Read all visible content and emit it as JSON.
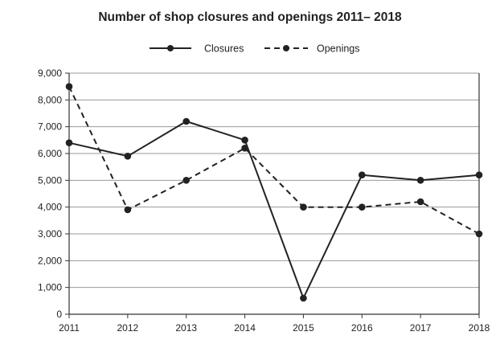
{
  "chart_data": {
    "type": "line",
    "title": "Number of shop closures and openings 2011– 2018",
    "xlabel": "",
    "ylabel": "",
    "categories": [
      "2011",
      "2012",
      "2013",
      "2014",
      "2015",
      "2016",
      "2017",
      "2018"
    ],
    "ylim": [
      0,
      9000
    ],
    "yticks": [
      0,
      1000,
      2000,
      3000,
      4000,
      5000,
      6000,
      7000,
      8000,
      9000
    ],
    "ytick_labels": [
      "0",
      "1,000",
      "2,000",
      "3,000",
      "4,000",
      "5,000",
      "6,000",
      "7,000",
      "8,000",
      "9,000"
    ],
    "grid": "horizontal",
    "legend_position": "top-center",
    "series": [
      {
        "name": "Closures",
        "line_style": "solid",
        "color": "#222222",
        "values": [
          6400,
          5900,
          7200,
          6500,
          600,
          5200,
          5000,
          5200
        ]
      },
      {
        "name": "Openings",
        "line_style": "dashed",
        "color": "#222222",
        "values": [
          8500,
          3900,
          5000,
          6200,
          4000,
          4000,
          4200,
          3000
        ]
      }
    ]
  },
  "colors": {
    "line": "#222222",
    "grid": "#999999",
    "axis": "#333333",
    "background": "#ffffff"
  }
}
